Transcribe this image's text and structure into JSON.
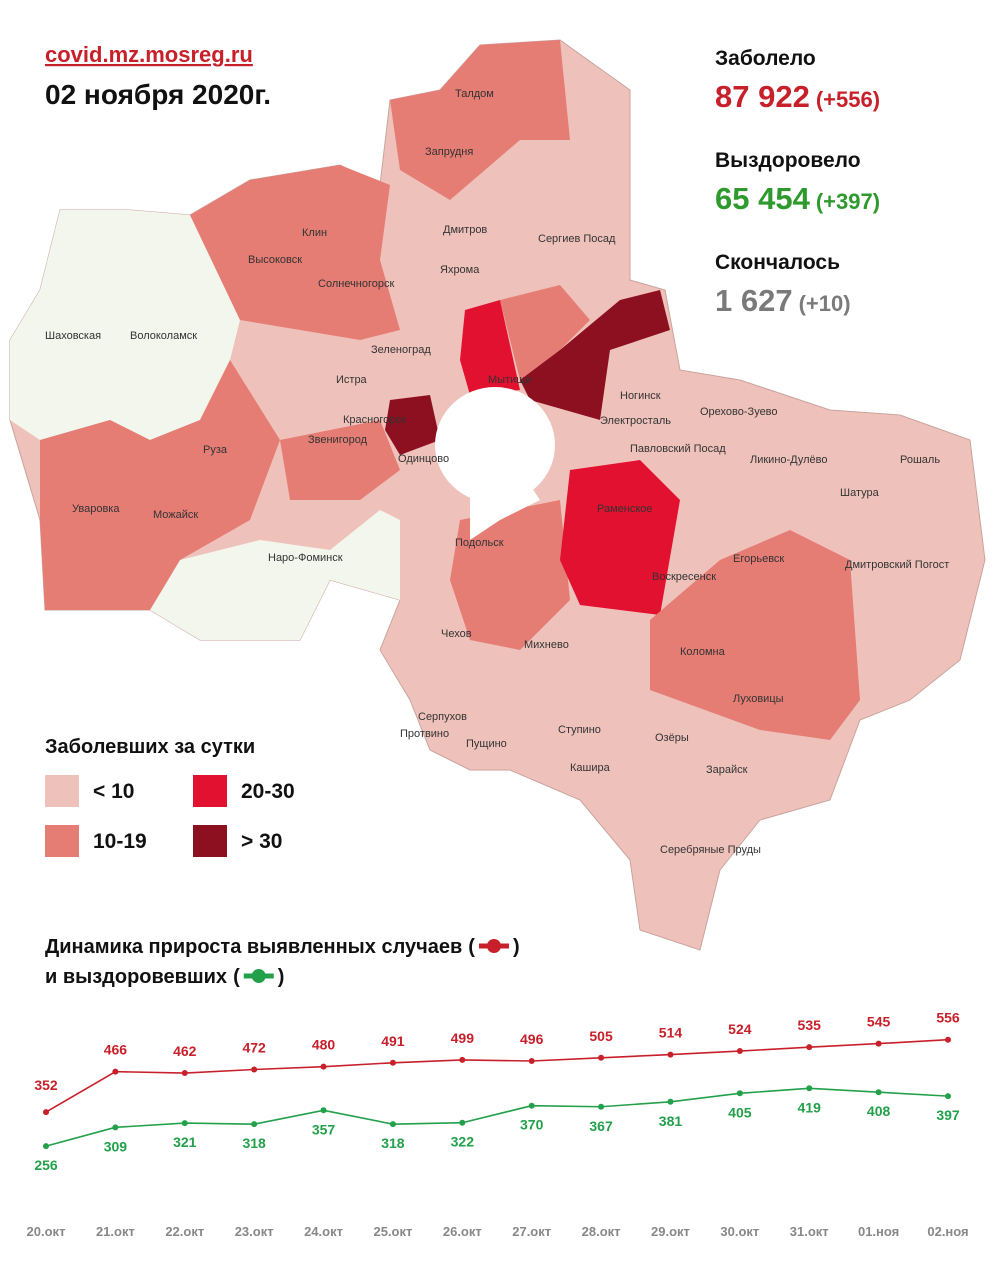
{
  "header": {
    "source": "covid.mz.mosreg.ru",
    "date": "02 ноября 2020г."
  },
  "stats": [
    {
      "label": "Заболело",
      "value": "87 922",
      "change": "(+556)",
      "color": "#c8202a"
    },
    {
      "label": "Выздоровело",
      "value": "65 454",
      "change": "(+397)",
      "color": "#2e9a2e"
    },
    {
      "label": "Скончалось",
      "value": "1 627",
      "change": "(+10)",
      "color": "#7a7a7a"
    }
  ],
  "map": {
    "towns": [
      "Талдом",
      "Запрудня",
      "Клин",
      "Высоковск",
      "Солнечногорск",
      "Дмитров",
      "Яхрома",
      "Сергиев Посад",
      "Шаховская",
      "Волоколамск",
      "Зеленоград",
      "Истра",
      "Мытищи",
      "Ногинск",
      "Орехово-Зуево",
      "Электросталь",
      "Павловский Посад",
      "Ликино-Дулёво",
      "Рошаль",
      "Красногорск",
      "Звенигород",
      "Одинцово",
      "Руза",
      "Шатура",
      "Уваровка",
      "Можайск",
      "Раменское",
      "Наро-Фоминск",
      "Подольск",
      "Егорьевск",
      "Дмитровский Погост",
      "Воскресенск",
      "Чехов",
      "Михнево",
      "Коломна",
      "Серпухов",
      "Луховицы",
      "Пущино",
      "Протвино",
      "Ступино",
      "Озёры",
      "Кашира",
      "Зарайск",
      "Серебряные Пруды"
    ]
  },
  "legend": {
    "title": "Заболевших за сутки",
    "items": [
      {
        "label": "< 10",
        "color": "#eec2ba"
      },
      {
        "label": "10-19",
        "color": "#e57d75"
      },
      {
        "label": "20-30",
        "color": "#e2112f"
      },
      {
        "label": "> 30",
        "color": "#8c1020"
      }
    ]
  },
  "chart_data": {
    "type": "line",
    "title": [
      "Динамика прироста выявленных случаев",
      "и выздоровевших"
    ],
    "legend_brackets": [
      "(",
      ")"
    ],
    "categories": [
      "20.окт",
      "21.окт",
      "22.окт",
      "23.окт",
      "24.окт",
      "25.окт",
      "26.окт",
      "27.окт",
      "28.окт",
      "29.окт",
      "30.окт",
      "31.окт",
      "01.ноя",
      "02.ноя"
    ],
    "series": [
      {
        "name": "выявленные случаи",
        "color": "#c8202a",
        "values": [
          352,
          466,
          462,
          472,
          480,
          491,
          499,
          496,
          505,
          514,
          524,
          535,
          545,
          556
        ]
      },
      {
        "name": "выздоровевшие",
        "color": "#22a04a",
        "values": [
          256,
          309,
          321,
          318,
          357,
          318,
          322,
          370,
          367,
          381,
          405,
          419,
          408,
          397
        ]
      }
    ],
    "ylim": [
      200,
      620
    ]
  }
}
